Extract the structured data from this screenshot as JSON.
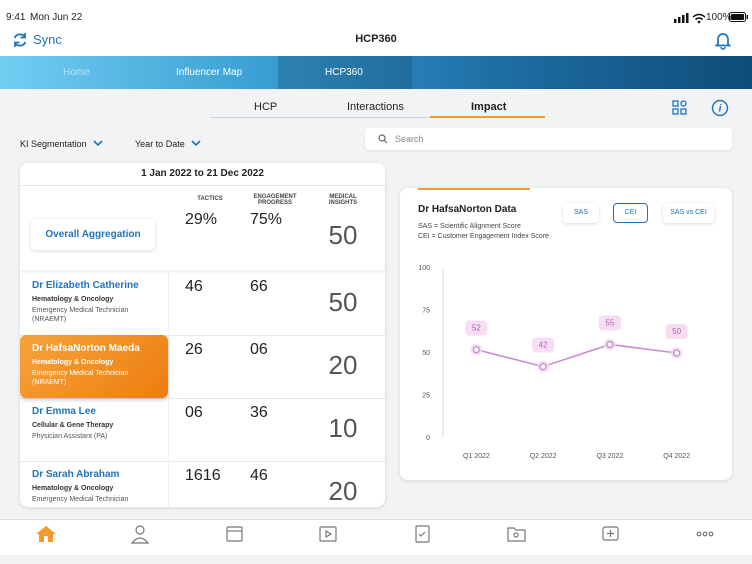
{
  "status": {
    "time": "9:41",
    "date": "Mon Jun 22",
    "battery": "100%"
  },
  "header": {
    "sync": "Sync",
    "title": "HCP360"
  },
  "nav": [
    "Home",
    "Influencer Map",
    "HCP360"
  ],
  "tabs": [
    "HCP",
    "Interactions",
    "Impact"
  ],
  "filters": [
    "KI Segmentation",
    "Year to Date"
  ],
  "search": "Search",
  "table": {
    "period": "1 Jan 2022 to 21 Dec 2022",
    "columns": [
      "TACTICS",
      "ENGAGEMENT PROGRESS",
      "MEDICAL INSIGHTS"
    ],
    "aggregation": {
      "label": "Overall Aggregation",
      "tactics": {
        "value": 29,
        "unit": "%"
      },
      "engagement": {
        "value": 75,
        "unit": "%"
      },
      "insights": 50
    },
    "rows": [
      {
        "name": "Dr Elizabeth Catherine",
        "specialty": "Hematology & Oncology",
        "role": "Emergency Medical Technician (NRAEMT)",
        "tactics": {
          "done": 4,
          "total": 6
        },
        "engagement": {
          "done": 6,
          "total": 6
        },
        "insights": 50
      },
      {
        "name": "Dr HafsaNorton Maeda",
        "specialty": "Hematology & Oncology",
        "role": "Emergency Medical Technician (NRAEMT)",
        "tactics": {
          "done": 2,
          "total": 6
        },
        "engagement": {
          "done": 0,
          "total": 6
        },
        "insights": 20
      },
      {
        "name": "Dr Emma Lee",
        "specialty": "Cellular & Gene Therapy",
        "role": "Physician Assistant (PA)",
        "tactics": {
          "done": 0,
          "total": 6
        },
        "engagement": {
          "done": 3,
          "total": 6
        },
        "insights": 10
      },
      {
        "name": "Dr Sarah Abraham",
        "specialty": "Hematology & Oncology",
        "role": "Emergency Medical Technician",
        "tactics": {
          "done": 16,
          "total": 16
        },
        "engagement": {
          "done": 4,
          "total": 6
        },
        "insights": 20
      }
    ]
  },
  "chart_panel": {
    "notes": [
      "SAS = Scientific Alignment Score",
      "CEI = Customer Engagement Index Score"
    ],
    "buttons": [
      "SAS",
      "CEI",
      "SAS vs CEI"
    ]
  },
  "chart_data": {
    "type": "line",
    "title": "Dr HafsaNorton Data",
    "categories": [
      "Q1 2022",
      "Q2 2022",
      "Q3 2022",
      "Q4 2022"
    ],
    "values": [
      52,
      42,
      55,
      50
    ],
    "color": "#c98bd0",
    "ylim": [
      0,
      100
    ],
    "yticks": [
      0,
      25,
      50,
      75,
      100
    ],
    "grid": false
  }
}
